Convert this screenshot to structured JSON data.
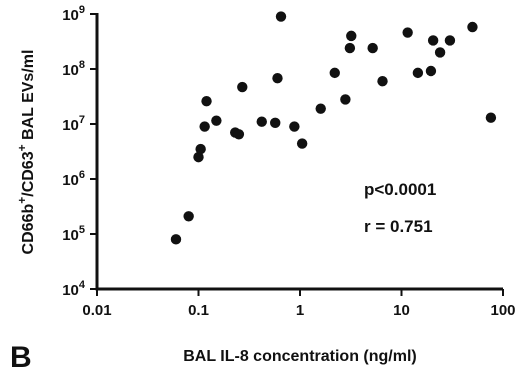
{
  "chart_data": {
    "type": "scatter",
    "xlabel": "BAL IL-8 concentration (ng/ml)",
    "ylabel": "CD66b+/CD63+ BAL EVs/ml",
    "xscale": "log",
    "yscale": "log",
    "xlim": [
      0.01,
      100
    ],
    "ylim": [
      10000,
      1000000000
    ],
    "x_ticks": [
      {
        "value": 0.01,
        "label": "0.01"
      },
      {
        "value": 0.1,
        "label": "0.1"
      },
      {
        "value": 1,
        "label": "1"
      },
      {
        "value": 10,
        "label": "10"
      },
      {
        "value": 100,
        "label": "100"
      }
    ],
    "y_ticks": [
      {
        "value": 10000,
        "base": "10",
        "exp": "4"
      },
      {
        "value": 100000,
        "base": "10",
        "exp": "5"
      },
      {
        "value": 1000000,
        "base": "10",
        "exp": "6"
      },
      {
        "value": 10000000,
        "base": "10",
        "exp": "7"
      },
      {
        "value": 100000000,
        "base": "10",
        "exp": "8"
      },
      {
        "value": 1000000000,
        "base": "10",
        "exp": "9"
      }
    ],
    "grid": false,
    "legend": "none",
    "annotations": [
      "p<0.0001",
      "r = 0.751"
    ],
    "marker_color": "#111111",
    "points": [
      {
        "x": 0.06,
        "y": 80000
      },
      {
        "x": 0.08,
        "y": 210000
      },
      {
        "x": 0.1,
        "y": 2500000
      },
      {
        "x": 0.105,
        "y": 3500000
      },
      {
        "x": 0.115,
        "y": 9000000
      },
      {
        "x": 0.12,
        "y": 26000000
      },
      {
        "x": 0.15,
        "y": 11500000
      },
      {
        "x": 0.23,
        "y": 7000000
      },
      {
        "x": 0.25,
        "y": 6500000
      },
      {
        "x": 0.27,
        "y": 47000000
      },
      {
        "x": 0.42,
        "y": 11000000
      },
      {
        "x": 0.57,
        "y": 10500000
      },
      {
        "x": 0.6,
        "y": 68000000
      },
      {
        "x": 0.65,
        "y": 900000000
      },
      {
        "x": 0.88,
        "y": 9000000
      },
      {
        "x": 1.05,
        "y": 4400000
      },
      {
        "x": 1.6,
        "y": 19000000
      },
      {
        "x": 2.2,
        "y": 85000000
      },
      {
        "x": 2.8,
        "y": 28000000
      },
      {
        "x": 3.1,
        "y": 240000000
      },
      {
        "x": 3.2,
        "y": 400000000
      },
      {
        "x": 5.2,
        "y": 240000000
      },
      {
        "x": 6.5,
        "y": 60000000
      },
      {
        "x": 11.5,
        "y": 460000000
      },
      {
        "x": 14.5,
        "y": 85000000
      },
      {
        "x": 19.5,
        "y": 92000000
      },
      {
        "x": 20.5,
        "y": 330000000
      },
      {
        "x": 24.0,
        "y": 200000000
      },
      {
        "x": 30.0,
        "y": 330000000
      },
      {
        "x": 50.0,
        "y": 580000000
      },
      {
        "x": 76.0,
        "y": 13000000
      }
    ]
  },
  "figure": {
    "panel_label": "B",
    "ylabel_parts": [
      {
        "text": "CD66b",
        "sup": "+"
      },
      {
        "text": "/CD63",
        "sup": "+"
      },
      {
        "text": " BAL EVs/ml",
        "sup": ""
      }
    ]
  }
}
